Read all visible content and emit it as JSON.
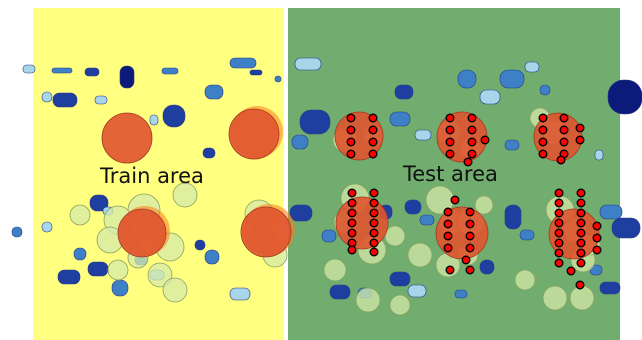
{
  "diagram": {
    "train_area": {
      "label": "Train area",
      "color": "#ffff80"
    },
    "test_area": {
      "label": "Test area",
      "color": "#70ad6f"
    },
    "colors": {
      "target_circle": "#e0542f",
      "target_halo": "#ff7a1a",
      "light_circle": "#d4eaa8",
      "marker_fill": "#ff0000",
      "blob_dark": "#1f3fa0",
      "blob_mid": "#3d80c6",
      "blob_light": "#a7d5ea",
      "blob_navy": "#0c1a7a"
    }
  }
}
